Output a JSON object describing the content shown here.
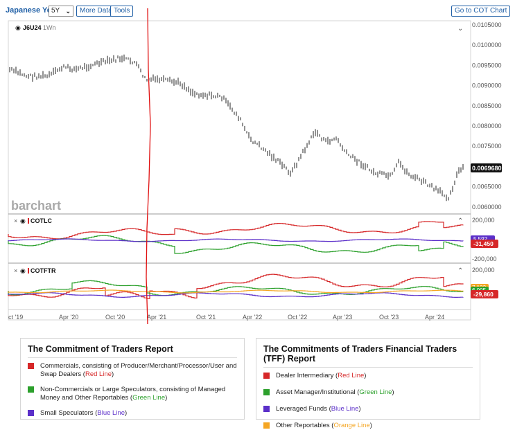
{
  "toolbar": {
    "title": "Japanese Yen",
    "period": "5Y",
    "more_data": "More Data",
    "tools": "Tools",
    "cot_chart": "Go to COT Chart"
  },
  "watermark": "barchart",
  "main_pane": {
    "symbol": "J6U24",
    "interval": "1Wn",
    "price_label": "0.0069680",
    "y_ticks": [
      "0.0105000",
      "0.0100000",
      "0.0095000",
      "0.0090000",
      "0.0085000",
      "0.0080000",
      "0.0075000",
      "0.0070000",
      "0.0065000",
      "0.0060000"
    ]
  },
  "cot_pane": {
    "name": "COTLC",
    "y_ticks": [
      "200,000",
      "-200,000"
    ],
    "badge_blue": "5,592",
    "badge_red": "-31,450"
  },
  "tff_pane": {
    "name": "COTFTR",
    "y_ticks": [
      "200,000"
    ],
    "badge_orange": "7,123",
    "badge_green": "6,005",
    "badge_red": "-29,860"
  },
  "x_axis": [
    "ct '19",
    "Apr '20",
    "Oct '20",
    "Apr '21",
    "Oct '21",
    "Apr '22",
    "Oct '22",
    "Apr '23",
    "Oct '23",
    "Apr '24"
  ],
  "colors": {
    "red": "#d62728",
    "green": "#2ca02c",
    "blue": "#5b2fc9",
    "orange": "#f5a623",
    "accent": "#1f5fa6"
  },
  "cot_report": {
    "title": "The Commitment of Traders Report",
    "items": [
      {
        "text": "Commercials, consisting of Producer/Merchant/Processor/User and Swap Dealers",
        "color_label": "Red Line"
      },
      {
        "text": "Non-Commercials or Large Speculators, consisting of Managed Money and Other Reportables",
        "color_label": "Green Line"
      },
      {
        "text": "Small Speculators",
        "color_label": "Blue Line"
      }
    ]
  },
  "tff_report": {
    "title": "The Commitments of Traders Financial Traders (TFF) Report",
    "items": [
      {
        "text": "Dealer Intermediary",
        "color_label": "Red Line"
      },
      {
        "text": "Asset Manager/Institutional",
        "color_label": "Green Line"
      },
      {
        "text": "Leveraged Funds",
        "color_label": "Blue Line"
      },
      {
        "text": "Other Reportables",
        "color_label": "Orange Line"
      }
    ]
  }
}
